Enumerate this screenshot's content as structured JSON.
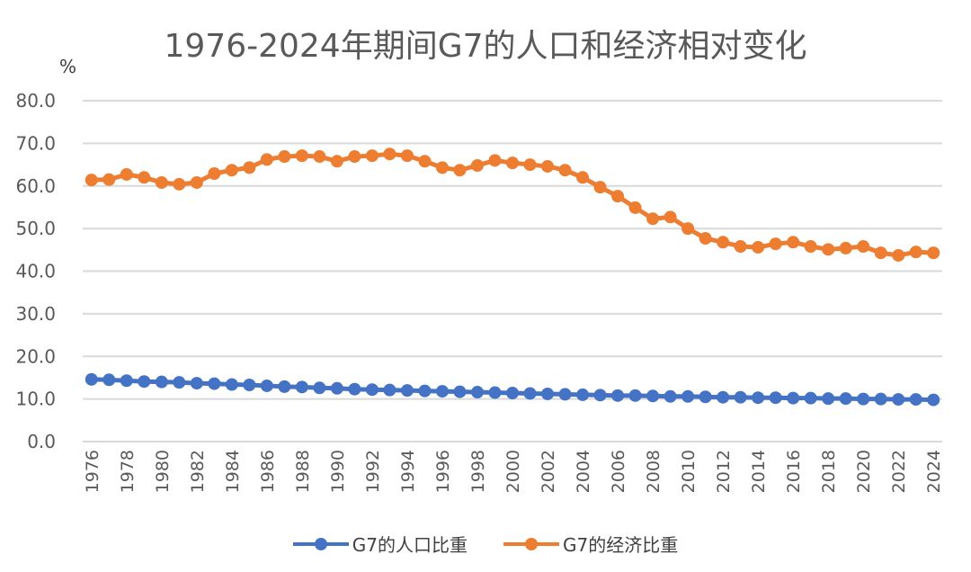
{
  "chart_data": {
    "type": "line",
    "title": "1976-2024年期间G7的人口和经济相对变化",
    "ylabel": "%",
    "ylim": [
      0,
      80
    ],
    "yticks": [
      "0.0",
      "10.0",
      "20.0",
      "30.0",
      "40.0",
      "50.0",
      "60.0",
      "70.0",
      "80.0"
    ],
    "xticks": [
      "1976",
      "1978",
      "1980",
      "1982",
      "1984",
      "1986",
      "1988",
      "1990",
      "1992",
      "1994",
      "1996",
      "1998",
      "2000",
      "2002",
      "2004",
      "2006",
      "2008",
      "2010",
      "2012",
      "2014",
      "2016",
      "2018",
      "2020",
      "2022",
      "2024"
    ],
    "x": [
      1976,
      1977,
      1978,
      1979,
      1980,
      1981,
      1982,
      1983,
      1984,
      1985,
      1986,
      1987,
      1988,
      1989,
      1990,
      1991,
      1992,
      1993,
      1994,
      1995,
      1996,
      1997,
      1998,
      1999,
      2000,
      2001,
      2002,
      2003,
      2004,
      2005,
      2006,
      2007,
      2008,
      2009,
      2010,
      2011,
      2012,
      2013,
      2014,
      2015,
      2016,
      2017,
      2018,
      2019,
      2020,
      2021,
      2022,
      2023,
      2024
    ],
    "grid": true,
    "legend": "bottom",
    "series": [
      {
        "name": "G7的人口比重",
        "color": "#4472C4",
        "values": [
          14.6,
          14.5,
          14.3,
          14.1,
          14.0,
          13.9,
          13.7,
          13.6,
          13.4,
          13.3,
          13.1,
          12.9,
          12.8,
          12.6,
          12.5,
          12.3,
          12.2,
          12.1,
          12.0,
          11.9,
          11.8,
          11.7,
          11.6,
          11.5,
          11.4,
          11.3,
          11.2,
          11.1,
          11.0,
          10.9,
          10.8,
          10.8,
          10.7,
          10.6,
          10.6,
          10.5,
          10.4,
          10.4,
          10.3,
          10.3,
          10.2,
          10.2,
          10.1,
          10.1,
          10.0,
          10.0,
          9.9,
          9.9,
          9.8
        ]
      },
      {
        "name": "G7的经济比重",
        "color": "#ED7D31",
        "values": [
          61.4,
          61.5,
          62.7,
          62.0,
          60.8,
          60.4,
          60.8,
          62.9,
          63.7,
          64.3,
          66.2,
          66.9,
          67.1,
          66.9,
          65.8,
          66.9,
          67.1,
          67.5,
          67.1,
          65.8,
          64.3,
          63.7,
          64.8,
          66.0,
          65.4,
          65.0,
          64.6,
          63.7,
          62.0,
          59.7,
          57.6,
          54.9,
          52.3,
          52.7,
          50.0,
          47.7,
          46.8,
          45.8,
          45.6,
          46.4,
          46.8,
          45.8,
          45.1,
          45.4,
          45.8,
          44.3,
          43.7,
          44.5,
          44.3
        ]
      }
    ]
  }
}
